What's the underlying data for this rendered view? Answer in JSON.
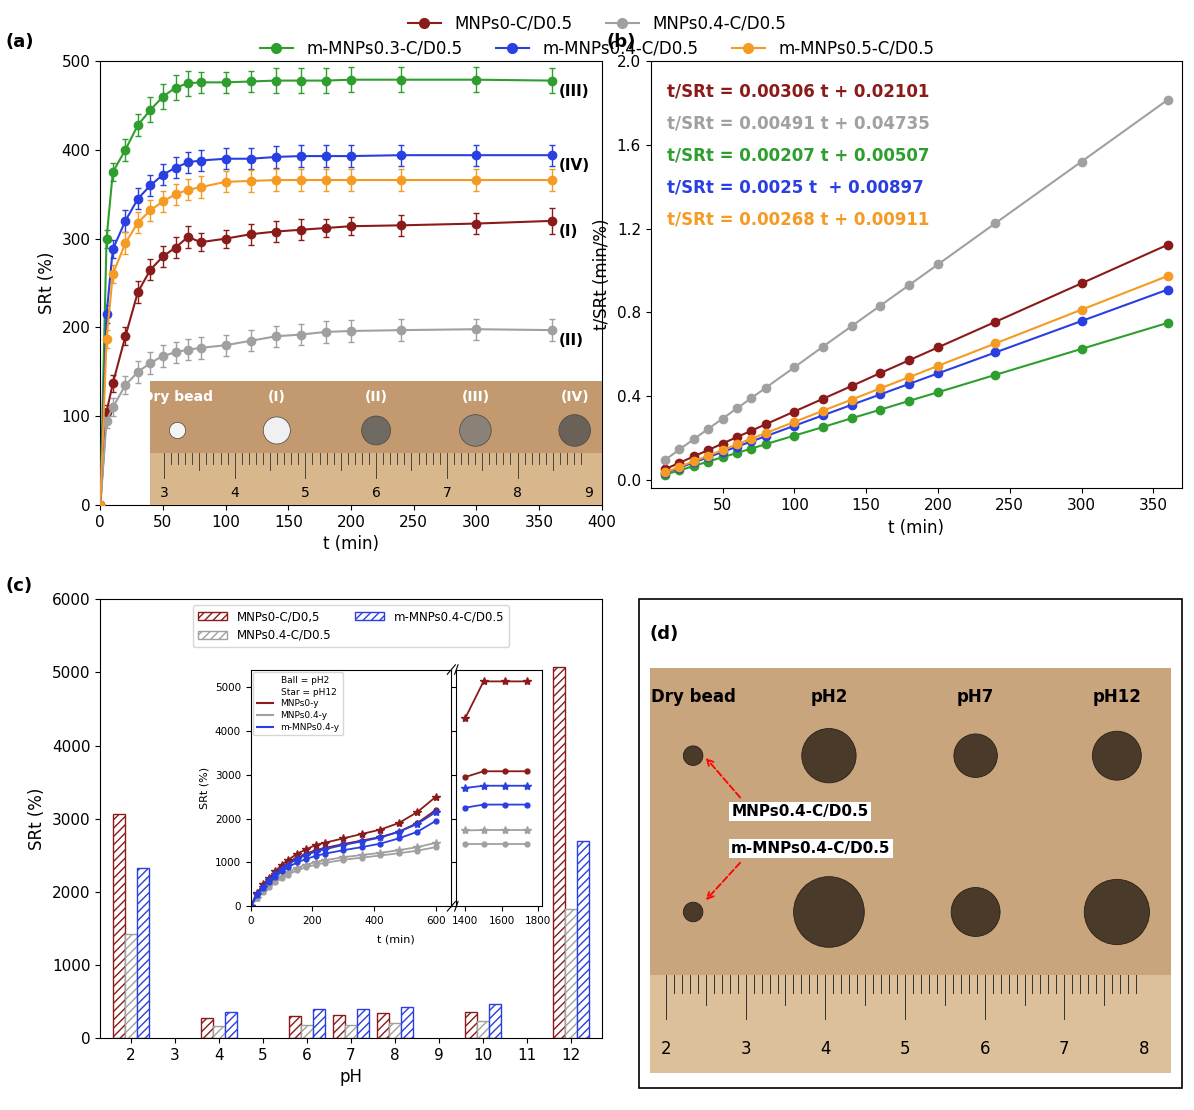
{
  "chart_data": [
    {
      "type": "line",
      "label": "(a)",
      "xlabel": "t (min)",
      "ylabel": "SRt (%)",
      "xlim": [
        0,
        400
      ],
      "xticks": [
        0,
        50,
        100,
        150,
        200,
        250,
        300,
        350,
        400
      ],
      "ylim": [
        0,
        500
      ],
      "yticks": [
        0,
        100,
        200,
        300,
        400,
        500
      ],
      "legend": "upper center",
      "marker": "circle",
      "line_style": "solid",
      "x": [
        0,
        5,
        10,
        20,
        30,
        40,
        50,
        60,
        70,
        80,
        100,
        120,
        140,
        160,
        180,
        200,
        240,
        300,
        360
      ],
      "series": [
        {
          "name": "MNPs0-C/D0.5",
          "color": "#8b1a1a",
          "end_label": "(I)",
          "values": [
            0,
            105,
            137,
            190,
            240,
            265,
            280,
            290,
            302,
            296,
            300,
            305,
            308,
            310,
            312,
            314,
            315,
            317,
            320
          ],
          "errors": [
            0,
            8,
            10,
            10,
            12,
            12,
            12,
            12,
            12,
            10,
            10,
            12,
            12,
            12,
            10,
            10,
            12,
            12,
            15
          ]
        },
        {
          "name": "MNPs0.4-C/D0.5",
          "color": "#a0a0a0",
          "end_label": "(II)",
          "values": [
            0,
            95,
            110,
            135,
            150,
            160,
            168,
            172,
            175,
            177,
            180,
            185,
            190,
            192,
            195,
            196,
            197,
            198,
            197
          ],
          "errors": [
            0,
            8,
            10,
            10,
            12,
            12,
            12,
            12,
            12,
            12,
            12,
            12,
            12,
            12,
            12,
            12,
            12,
            12,
            12
          ]
        },
        {
          "name": "m-MNPs0.3-C/D0.5",
          "color": "#2e9e2e",
          "end_label": "(III)",
          "values": [
            0,
            300,
            375,
            400,
            428,
            445,
            460,
            470,
            475,
            476,
            476,
            477,
            478,
            478,
            478,
            479,
            479,
            479,
            478
          ],
          "errors": [
            0,
            10,
            10,
            12,
            12,
            14,
            14,
            14,
            14,
            12,
            12,
            12,
            14,
            14,
            14,
            14,
            14,
            14,
            14
          ]
        },
        {
          "name": "m-MNPs0.4-C/D0.5",
          "color": "#2a3fe0",
          "end_label": "(IV)",
          "values": [
            0,
            215,
            288,
            320,
            345,
            360,
            372,
            380,
            386,
            388,
            390,
            390,
            392,
            393,
            393,
            393,
            394,
            394,
            394
          ],
          "errors": [
            0,
            10,
            10,
            12,
            12,
            12,
            12,
            12,
            12,
            12,
            12,
            12,
            12,
            12,
            12,
            12,
            12,
            12,
            12
          ]
        },
        {
          "name": "m-MNPs0.5-C/D0.5",
          "color": "#f59a23",
          "values": [
            0,
            187,
            260,
            295,
            318,
            332,
            342,
            350,
            355,
            358,
            364,
            365,
            366,
            366,
            366,
            366,
            366,
            366,
            366
          ],
          "errors": [
            0,
            10,
            10,
            12,
            12,
            12,
            12,
            12,
            12,
            12,
            12,
            12,
            12,
            12,
            12,
            12,
            12,
            12,
            12
          ]
        }
      ],
      "inset_photo": {
        "labels": [
          "Dry bead",
          "(I)",
          "(II)",
          "(III)",
          "(IV)"
        ],
        "ruler": [
          3,
          4,
          5,
          6,
          7,
          8,
          9
        ]
      }
    },
    {
      "type": "line",
      "label": "(b)",
      "xlabel": "t (min)",
      "ylabel": "t/SRt (min/%)",
      "xlim": [
        0,
        370
      ],
      "xticks": [
        50,
        100,
        150,
        200,
        250,
        300,
        350
      ],
      "ylim": [
        -0.04,
        2.0
      ],
      "yticks": [
        {
          "value": 0,
          "label": "0.0"
        },
        0.4,
        0.8,
        1.2,
        1.6,
        {
          "value": 2,
          "label": "2.0"
        }
      ],
      "marker": "circle",
      "line_style": "solid",
      "x": [
        10,
        20,
        30,
        40,
        50,
        60,
        70,
        80,
        100,
        120,
        140,
        160,
        180,
        200,
        240,
        300,
        360
      ],
      "series": [
        {
          "color": "#8b1a1a",
          "equation": "t/SRt = 0.00306 t + 0.02101",
          "values": [
            0.052,
            0.082,
            0.113,
            0.143,
            0.174,
            0.205,
            0.235,
            0.266,
            0.327,
            0.388,
            0.449,
            0.511,
            0.572,
            0.633,
            0.755,
            0.939,
            1.123
          ]
        },
        {
          "color": "#a0a0a0",
          "equation": "t/SRt = 0.00491 t + 0.04735",
          "values": [
            0.096,
            0.146,
            0.195,
            0.244,
            0.293,
            0.342,
            0.391,
            0.44,
            0.538,
            0.637,
            0.735,
            0.833,
            0.931,
            1.029,
            1.226,
            1.52,
            1.815
          ]
        },
        {
          "color": "#2e9e2e",
          "equation": "t/SRt = 0.00207 t + 0.00507",
          "values": [
            0.026,
            0.046,
            0.067,
            0.088,
            0.109,
            0.129,
            0.15,
            0.171,
            0.212,
            0.253,
            0.295,
            0.336,
            0.378,
            0.419,
            0.502,
            0.626,
            0.75
          ]
        },
        {
          "color": "#2a3fe0",
          "equation": "t/SRt = 0.0025 t  + 0.00897",
          "values": [
            0.034,
            0.059,
            0.084,
            0.109,
            0.134,
            0.159,
            0.184,
            0.209,
            0.259,
            0.309,
            0.359,
            0.409,
            0.459,
            0.509,
            0.609,
            0.759,
            0.909
          ]
        },
        {
          "color": "#f59a23",
          "equation": "t/SRt = 0.00268 t + 0.00911",
          "values": [
            0.036,
            0.063,
            0.09,
            0.116,
            0.143,
            0.17,
            0.197,
            0.224,
            0.277,
            0.331,
            0.384,
            0.438,
            0.491,
            0.545,
            0.652,
            0.813,
            0.974
          ]
        }
      ]
    },
    {
      "type": "bar",
      "label": "(c)",
      "xlabel": "pH",
      "ylabel": "SRt (%)",
      "x": [
        2,
        4,
        6,
        7,
        8,
        10,
        12
      ],
      "xlim": [
        1.3,
        12.7
      ],
      "xticks": [
        2,
        3,
        4,
        5,
        6,
        7,
        8,
        9,
        10,
        11,
        12
      ],
      "ylim": [
        0,
        6000
      ],
      "yticks": [
        0,
        1000,
        2000,
        3000,
        4000,
        5000,
        6000
      ],
      "legend": "upper center",
      "series": [
        {
          "name": "MNPs0-C/D0,5",
          "color": "#8b1a1a",
          "values": [
            3070,
            270,
            300,
            310,
            340,
            360,
            5080
          ]
        },
        {
          "name": "MNPs0.4-C/D0.5",
          "color": "#a0a0a0",
          "values": [
            1420,
            160,
            180,
            180,
            200,
            230,
            1760
          ]
        },
        {
          "name": "m-MNPs0.4-C/D0.5",
          "color": "#2a3fe0",
          "values": [
            2320,
            350,
            390,
            390,
            420,
            460,
            2700
          ]
        }
      ],
      "inset": {
        "type": "line",
        "xlabel": "t (min)",
        "ylabel": "SRt (%)",
        "x": [
          [
            0,
            20,
            40,
            60,
            80,
            100,
            120,
            150,
            180,
            210,
            240,
            300,
            360,
            420,
            480,
            540,
            600
          ],
          [
            1400,
            1500,
            1620,
            1740
          ]
        ],
        "xlim": [
          [
            0,
            650
          ],
          [
            1350,
            1820
          ]
        ],
        "xticks": [
          [
            0,
            200,
            400,
            600
          ],
          [
            1400,
            1600,
            1800
          ]
        ],
        "ylim": [
          0,
          5400
        ],
        "yticks": [
          0,
          1000,
          2000,
          3000,
          4000,
          5000
        ],
        "legend": "upper left",
        "annotations": [
          "Ball = pH2",
          "Star = pH12"
        ],
        "series": [
          {
            "name": "MNPs0-y",
            "color": "#8b1a1a",
            "Ball": [
              [
                0,
                280,
                470,
                620,
                760,
                880,
                980,
                1100,
                1200,
                1280,
                1330,
                1420,
                1500,
                1580,
                1700,
                1900,
                2200
              ],
              [
                2950,
                3080,
                3080,
                3080
              ]
            ],
            "Star": [
              [
                0,
                300,
                500,
                650,
                800,
                950,
                1050,
                1200,
                1300,
                1400,
                1450,
                1550,
                1650,
                1750,
                1900,
                2150,
                2500
              ],
              [
                4300,
                5130,
                5130,
                5130
              ]
            ]
          },
          {
            "name": "MNPs0.4-y",
            "color": "#a0a0a0",
            "Ball": [
              [
                0,
                180,
                320,
                440,
                550,
                640,
                720,
                820,
                890,
                950,
                990,
                1060,
                1110,
                1160,
                1210,
                1270,
                1350
              ],
              [
                1420,
                1420,
                1420,
                1420
              ]
            ],
            "Star": [
              [
                0,
                200,
                350,
                480,
                600,
                700,
                780,
                880,
                950,
                1010,
                1050,
                1120,
                1170,
                1220,
                1280,
                1350,
                1450
              ],
              [
                1730,
                1740,
                1740,
                1740
              ]
            ]
          },
          {
            "name": "m-MNPs0.4-y",
            "color": "#2a3fe0",
            "Ball": [
              [
                0,
                250,
                420,
                560,
                680,
                800,
                890,
                1000,
                1080,
                1150,
                1200,
                1280,
                1350,
                1430,
                1550,
                1700,
                1950
              ],
              [
                2250,
                2320,
                2320,
                2320
              ]
            ],
            "Star": [
              [
                0,
                270,
                450,
                600,
                730,
                850,
                950,
                1080,
                1170,
                1250,
                1300,
                1400,
                1480,
                1570,
                1700,
                1880,
                2150
              ],
              [
                2700,
                2750,
                2750,
                2750
              ]
            ]
          }
        ]
      }
    }
  ],
  "panel_d": {
    "label": "(d)",
    "column_labels": [
      "Dry bead",
      "pH2",
      "pH7",
      "pH12"
    ],
    "row_labels": [
      "MNPs0.4-C/D0.5",
      "m-MNPs0.4-C/D0.5"
    ],
    "ruler": [
      2,
      3,
      4,
      5,
      6,
      7,
      8
    ]
  }
}
